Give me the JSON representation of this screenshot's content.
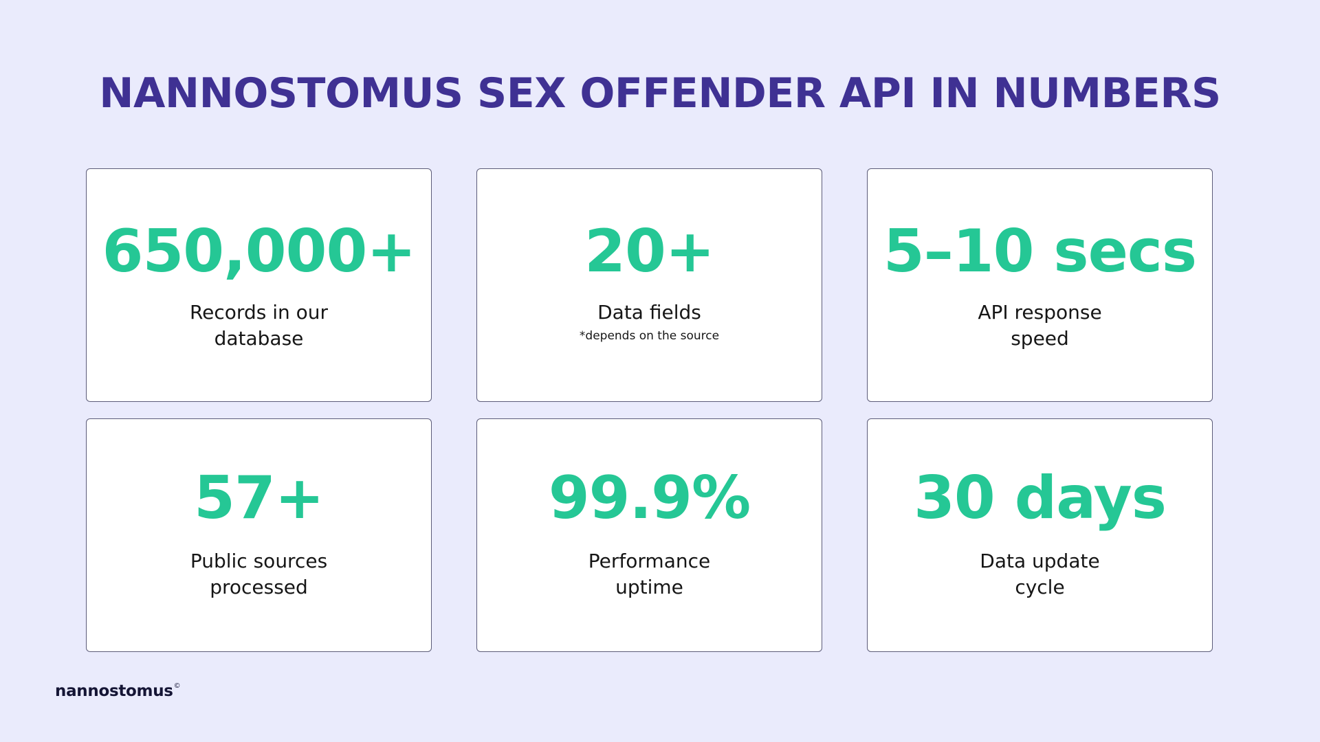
{
  "title": "NANNOSTOMUS SEX OFFENDER API IN NUMBERS",
  "stats": [
    {
      "value": "650,000+",
      "label_line1": "Records in our",
      "label_line2": "database"
    },
    {
      "value": "20+",
      "label_line1": "Data fields",
      "note": "*depends on the source"
    },
    {
      "value": "5–10 secs",
      "label_line1": "API response",
      "label_line2": "speed"
    },
    {
      "value": "57+",
      "label_line1": "Public sources",
      "label_line2": "processed"
    },
    {
      "value": "99.9%",
      "label_line1": "Performance",
      "label_line2": "uptime"
    },
    {
      "value": "30 days",
      "label_line1": "Data update",
      "label_line2": "cycle"
    }
  ],
  "logo": {
    "text": "nannostomus",
    "mark": "©"
  },
  "colors": {
    "background": "#eaebfc",
    "title": "#3f3193",
    "accent": "#25c795",
    "card": "#ffffff",
    "text": "#161616"
  }
}
